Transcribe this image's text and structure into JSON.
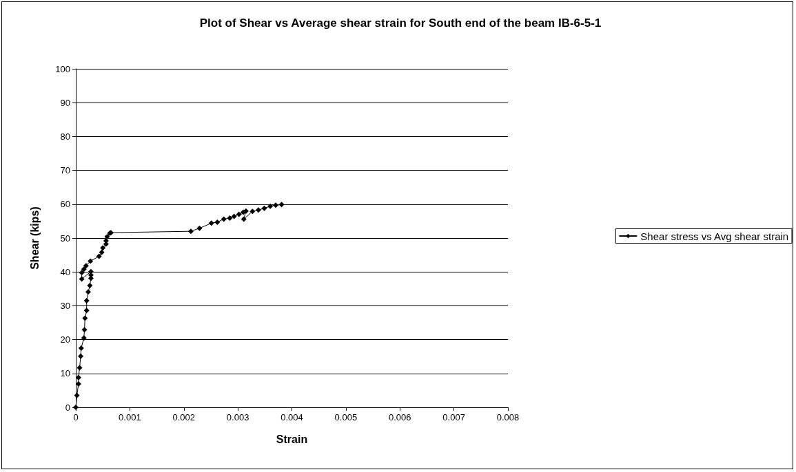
{
  "chart_data": {
    "type": "line",
    "title": "Plot of Shear vs Average shear strain for South end of the beam IB-6-5-1",
    "xlabel": "Strain",
    "ylabel": "Shear (kips)",
    "x": [
      0,
      2e-05,
      5e-05,
      5e-05,
      7e-05,
      9e-05,
      0.0001,
      0.00015,
      0.00016,
      0.00017,
      0.0002,
      0.0002,
      0.00023,
      0.00026,
      0.00028,
      0.00028,
      0.00028,
      0.00011,
      0.00011,
      0.00015,
      0.00019,
      0.00027,
      0.00043,
      0.00048,
      0.0005,
      0.00056,
      0.00056,
      0.00058,
      0.00063,
      0.00065,
      0.00213,
      0.00229,
      0.00251,
      0.00262,
      0.00274,
      0.00285,
      0.00293,
      0.00302,
      0.0031,
      0.00315,
      0.00311,
      0.00327,
      0.00338,
      0.00349,
      0.0036,
      0.0037,
      0.00381
    ],
    "series": [
      {
        "name": "Shear stress vs Avg shear strain",
        "color": "#000000",
        "values": [
          0,
          3.5,
          6.9,
          8.8,
          11.7,
          15.1,
          17.5,
          20.5,
          22.9,
          26.3,
          28.6,
          31.5,
          34.1,
          36,
          38.1,
          39.1,
          40.1,
          37.9,
          39.8,
          40.8,
          41.8,
          43.2,
          44.6,
          45.8,
          47.1,
          48.2,
          49.2,
          50.4,
          51.4,
          51.6,
          52,
          52.9,
          54.4,
          54.7,
          55.6,
          55.9,
          56.4,
          57,
          57.6,
          58,
          55.6,
          57.9,
          58.3,
          58.8,
          59.4,
          59.7,
          59.9
        ]
      }
    ],
    "xlim": [
      0,
      0.008
    ],
    "xticks": [
      0,
      0.001,
      0.002,
      0.003,
      0.004,
      0.005,
      0.006,
      0.007,
      0.008
    ],
    "ylim": [
      0,
      100
    ],
    "yticks": [
      0,
      10,
      20,
      30,
      40,
      50,
      60,
      70,
      80,
      90,
      100
    ],
    "grid": "y",
    "legend": "right",
    "marker": "diamond",
    "line_style": "solid"
  }
}
